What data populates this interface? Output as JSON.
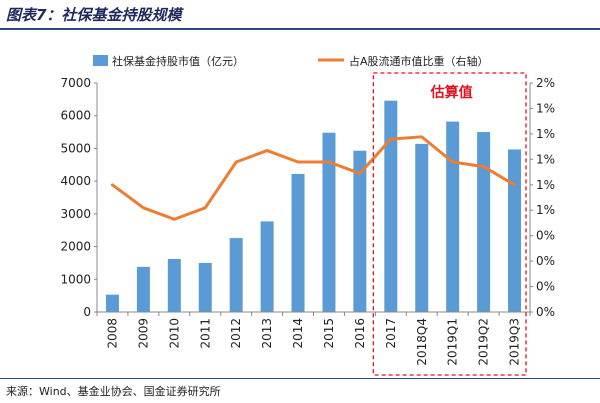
{
  "title": "图表7：社保基金持股规模",
  "source": "来源：Wind、基金业协会、国金证券研究所",
  "chart_data": {
    "type": "bar+line",
    "categories": [
      "2008",
      "2009",
      "2010",
      "2011",
      "2012",
      "2013",
      "2014",
      "2015",
      "2016",
      "2017",
      "2018Q4",
      "2019Q1",
      "2019Q2",
      "2019Q3"
    ],
    "series": [
      {
        "name": "社保基金持股市值（亿元）",
        "type": "bar",
        "axis": "left",
        "color": "#5b9bd5",
        "values": [
          530,
          1380,
          1620,
          1500,
          2260,
          2770,
          4220,
          5480,
          4930,
          6460,
          5140,
          5820,
          5500,
          4970
        ]
      },
      {
        "name": "占A股流通市值比重（右轴）",
        "type": "line",
        "axis": "right",
        "color": "#ed7d31",
        "values": [
          1.11,
          0.91,
          0.81,
          0.91,
          1.31,
          1.41,
          1.31,
          1.31,
          1.21,
          1.51,
          1.53,
          1.31,
          1.27,
          1.11
        ]
      }
    ],
    "left_axis": {
      "min": 0,
      "max": 7000,
      "ticks": [
        "0",
        "1000",
        "2000",
        "3000",
        "4000",
        "5000",
        "6000",
        "7000"
      ]
    },
    "right_axis": {
      "min": 0,
      "max": 2,
      "ticks": [
        "0%",
        "0%",
        "0%",
        "0%",
        "1%",
        "1%",
        "1%",
        "1%",
        "1%",
        "2%"
      ]
    },
    "annotation": {
      "text": "估算值",
      "color": "#e0101e",
      "from_category": "2017",
      "to_category": "2019Q3"
    },
    "legend_position": "top",
    "grid": false
  }
}
